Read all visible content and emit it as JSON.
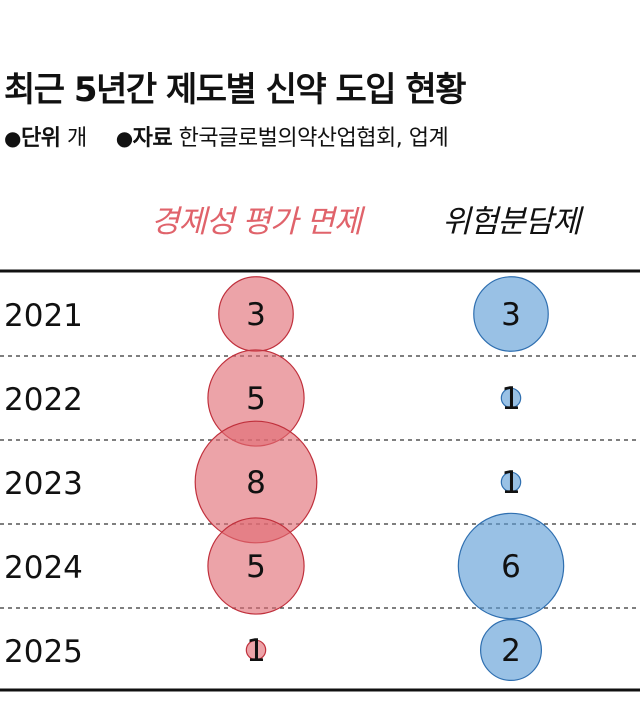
{
  "title": "최근 5년간 제도별 신약 도입 현황",
  "meta": {
    "unit_label": "단위",
    "unit_value": "개",
    "source_label": "자료",
    "source_value": "한국글로벌의약산업협회, 업계",
    "bullet": "●"
  },
  "colors": {
    "series1_fill": "#e06b72",
    "series1_stroke": "#c0303c",
    "series1_header": "#e0636b",
    "series2_fill": "#5b9bd5",
    "series2_stroke": "#2f6fb0",
    "rule": "#111111"
  },
  "chart_data": {
    "type": "bubble",
    "categories": [
      "2021",
      "2022",
      "2023",
      "2024",
      "2025"
    ],
    "series": [
      {
        "name": "경제성 평가 면제",
        "values": [
          3,
          5,
          8,
          5,
          1
        ]
      },
      {
        "name": "위험분담제",
        "values": [
          3,
          1,
          1,
          6,
          2
        ]
      }
    ]
  }
}
